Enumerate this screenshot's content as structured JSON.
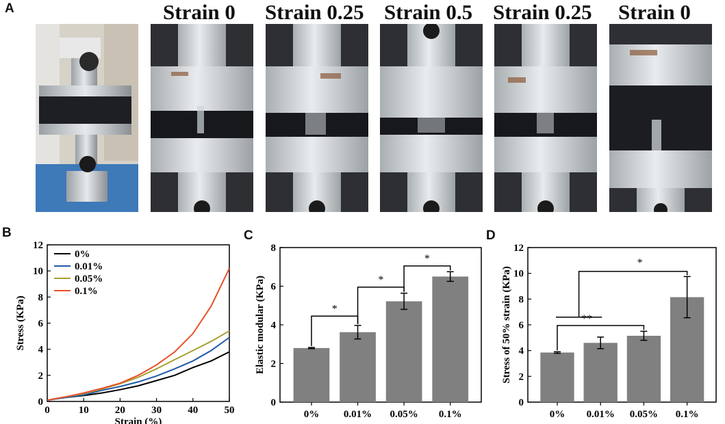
{
  "panels": {
    "a": {
      "letter": "A",
      "labels": [
        "Strain 0",
        "Strain 0.25",
        "Strain 0.5",
        "Strain 0.25",
        "Strain 0"
      ]
    },
    "b": {
      "letter": "B"
    },
    "c": {
      "letter": "C"
    },
    "d": {
      "letter": "D"
    }
  },
  "colors": {
    "bar": "#808080",
    "black": "#000000",
    "blue": "#1f5aa6",
    "olive": "#a7a035",
    "red": "#e8512a"
  },
  "chart_data": [
    {
      "id": "b",
      "type": "line",
      "xlabel": "Strain (%)",
      "ylabel": "Stress (KPa)",
      "xlim": [
        0,
        50
      ],
      "ylim": [
        0,
        12
      ],
      "xticks": [
        0,
        10,
        20,
        30,
        40,
        50
      ],
      "yticks": [
        0,
        2,
        4,
        6,
        8,
        10,
        12
      ],
      "legend_position": "top-left",
      "series": [
        {
          "name": "0%",
          "color": "#000000",
          "x": [
            0,
            5,
            10,
            15,
            20,
            25,
            30,
            35,
            40,
            45,
            50
          ],
          "y": [
            0.1,
            0.3,
            0.45,
            0.65,
            0.9,
            1.2,
            1.6,
            2.0,
            2.6,
            3.1,
            3.8
          ]
        },
        {
          "name": "0.01%",
          "color": "#1f5aa6",
          "x": [
            0,
            5,
            10,
            15,
            20,
            25,
            30,
            35,
            40,
            45,
            50
          ],
          "y": [
            0.1,
            0.3,
            0.5,
            0.85,
            1.15,
            1.5,
            1.95,
            2.5,
            3.1,
            3.9,
            4.9
          ]
        },
        {
          "name": "0.05%",
          "color": "#a7a035",
          "x": [
            0,
            5,
            10,
            15,
            20,
            25,
            30,
            35,
            40,
            45,
            50
          ],
          "y": [
            0.1,
            0.35,
            0.6,
            0.95,
            1.35,
            1.85,
            2.5,
            3.2,
            3.9,
            4.6,
            5.4
          ]
        },
        {
          "name": "0.1%",
          "color": "#e8512a",
          "x": [
            0,
            5,
            10,
            15,
            20,
            25,
            30,
            35,
            40,
            45,
            50
          ],
          "y": [
            0.1,
            0.35,
            0.65,
            1.0,
            1.4,
            2.0,
            2.8,
            3.8,
            5.2,
            7.3,
            10.2
          ]
        }
      ]
    },
    {
      "id": "c",
      "type": "bar",
      "xlabel": "",
      "ylabel": "Elastic modular (KPa)",
      "ylim": [
        0,
        8
      ],
      "yticks": [
        0,
        2,
        4,
        6,
        8
      ],
      "categories": [
        "0%",
        "0.01%",
        "0.05%",
        "0.1%"
      ],
      "values": [
        2.8,
        3.62,
        5.22,
        6.5
      ],
      "errors": [
        0.03,
        0.35,
        0.42,
        0.25
      ],
      "significance": [
        {
          "from": 0,
          "to": 1,
          "label": "*",
          "y": 4.45
        },
        {
          "from": 1,
          "to": 2,
          "label": "*",
          "y": 5.95
        },
        {
          "from": 2,
          "to": 3,
          "label": "*",
          "y": 7.05
        }
      ]
    },
    {
      "id": "d",
      "type": "bar",
      "xlabel": "",
      "ylabel": "Stress of 50% strain (KPa)",
      "ylim": [
        0,
        12
      ],
      "yticks": [
        0,
        2,
        4,
        6,
        8,
        10,
        12
      ],
      "categories": [
        "0%",
        "0.01%",
        "0.05%",
        "0.1%"
      ],
      "values": [
        3.85,
        4.6,
        5.15,
        8.15
      ],
      "errors": [
        0.06,
        0.45,
        0.35,
        1.6
      ],
      "significance": [
        {
          "from": 0,
          "to": 2,
          "label": "**",
          "y": 5.95
        },
        {
          "from": 0,
          "to": 3,
          "label": "*",
          "y": 10.15
        }
      ]
    }
  ]
}
